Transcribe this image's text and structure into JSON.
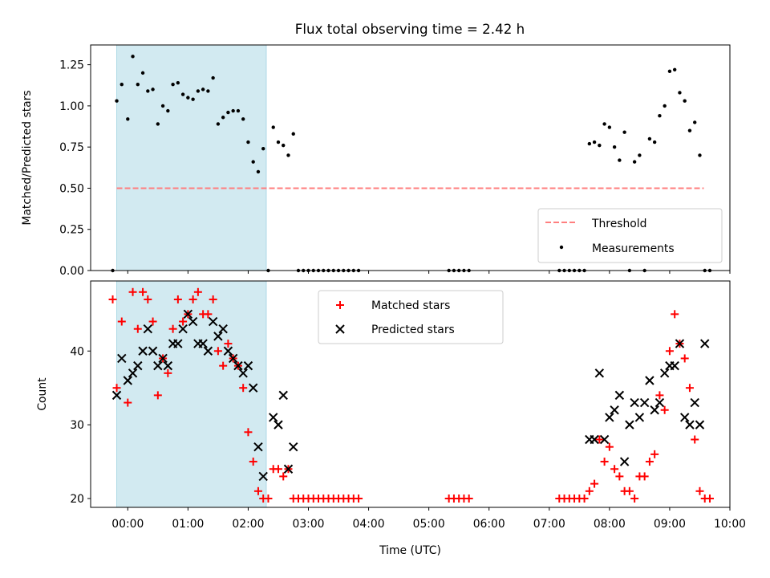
{
  "chart_data": [
    {
      "type": "scatter",
      "panel": "top",
      "title": "Flux total observing time = 2.42 h",
      "xlabel": "",
      "ylabel": "Matched/Predicted stars",
      "xlim": [
        "23:23",
        "10:00"
      ],
      "ylim": [
        0,
        1.37
      ],
      "y_ticks": [
        "0.00",
        "0.25",
        "0.50",
        "0.75",
        "1.00",
        "1.25"
      ],
      "x_ticks": [
        "00:00",
        "01:00",
        "02:00",
        "03:00",
        "04:00",
        "05:00",
        "06:00",
        "07:00",
        "08:00",
        "09:00",
        "10:00"
      ],
      "x_tick_labels_shown": false,
      "shaded_interval": {
        "start": "23:49",
        "end": "02:18",
        "color": "#add8e6"
      },
      "legend_position": "lower right",
      "series": [
        {
          "name": "Threshold",
          "kind": "dashed-line",
          "color": "#ff7f7f",
          "x": [
            "23:49",
            "09:34"
          ],
          "y": [
            0.5,
            0.5
          ]
        },
        {
          "name": "Measurements",
          "kind": "dots",
          "color": "#000000",
          "x": [
            "23:45",
            "23:49",
            "23:54",
            "00:00",
            "00:05",
            "00:10",
            "00:15",
            "00:20",
            "00:25",
            "00:30",
            "00:35",
            "00:40",
            "00:45",
            "00:50",
            "00:55",
            "01:00",
            "01:05",
            "01:10",
            "01:15",
            "01:20",
            "01:25",
            "01:30",
            "01:35",
            "01:40",
            "01:45",
            "01:50",
            "01:55",
            "02:00",
            "02:05",
            "02:10",
            "02:15",
            "02:20",
            "02:25",
            "02:30",
            "02:35",
            "02:40",
            "02:45",
            "02:50",
            "02:55",
            "03:00",
            "03:05",
            "03:10",
            "03:15",
            "03:20",
            "03:25",
            "03:30",
            "03:35",
            "03:40",
            "03:45",
            "03:50",
            "05:20",
            "05:25",
            "05:30",
            "05:35",
            "05:40",
            "07:10",
            "07:15",
            "07:20",
            "07:25",
            "07:30",
            "07:35",
            "07:40",
            "07:45",
            "07:50",
            "07:55",
            "08:00",
            "08:05",
            "08:10",
            "08:15",
            "08:20",
            "08:25",
            "08:30",
            "08:35",
            "08:40",
            "08:45",
            "08:50",
            "08:55",
            "09:00",
            "09:05",
            "09:10",
            "09:15",
            "09:20",
            "09:25",
            "09:30",
            "09:35",
            "09:40"
          ],
          "y": [
            0.0,
            1.03,
            1.13,
            0.92,
            1.3,
            1.13,
            1.2,
            1.09,
            1.1,
            0.89,
            1.0,
            0.97,
            1.13,
            1.14,
            1.07,
            1.05,
            1.04,
            1.09,
            1.1,
            1.09,
            1.17,
            0.89,
            0.93,
            0.96,
            0.97,
            0.97,
            0.92,
            0.78,
            0.66,
            0.6,
            0.74,
            0.0,
            0.87,
            0.78,
            0.76,
            0.7,
            0.83,
            0.0,
            0.0,
            0.0,
            0.0,
            0.0,
            0.0,
            0.0,
            0.0,
            0.0,
            0.0,
            0.0,
            0.0,
            0.0,
            0.0,
            0.0,
            0.0,
            0.0,
            0.0,
            0.0,
            0.0,
            0.0,
            0.0,
            0.0,
            0.0,
            0.77,
            0.78,
            0.76,
            0.89,
            0.87,
            0.75,
            0.67,
            0.84,
            0.0,
            0.66,
            0.7,
            0.0,
            0.8,
            0.78,
            0.94,
            1.0,
            1.21,
            1.22,
            1.08,
            1.03,
            0.85,
            0.9,
            0.7,
            0.0,
            0.0
          ]
        }
      ]
    },
    {
      "type": "scatter",
      "panel": "bottom",
      "title": "",
      "xlabel": "Time (UTC)",
      "ylabel": "Count",
      "xlim": [
        "23:23",
        "10:00"
      ],
      "ylim": [
        18.8,
        49.5
      ],
      "y_ticks": [
        "20",
        "30",
        "40"
      ],
      "x_ticks": [
        "00:00",
        "01:00",
        "02:00",
        "03:00",
        "04:00",
        "05:00",
        "06:00",
        "07:00",
        "08:00",
        "09:00",
        "10:00"
      ],
      "shaded_interval": {
        "start": "23:49",
        "end": "02:18",
        "color": "#add8e6"
      },
      "legend_position": "upper center",
      "series": [
        {
          "name": "Matched stars",
          "marker": "+",
          "color": "#ff0000",
          "x": [
            "23:45",
            "23:49",
            "23:54",
            "00:00",
            "00:05",
            "00:10",
            "00:15",
            "00:20",
            "00:25",
            "00:30",
            "00:35",
            "00:40",
            "00:45",
            "00:50",
            "00:55",
            "01:00",
            "01:05",
            "01:10",
            "01:15",
            "01:20",
            "01:25",
            "01:30",
            "01:35",
            "01:40",
            "01:45",
            "01:50",
            "01:55",
            "02:00",
            "02:05",
            "02:10",
            "02:15",
            "02:20",
            "02:25",
            "02:30",
            "02:35",
            "02:40",
            "02:45",
            "02:50",
            "02:55",
            "03:00",
            "03:05",
            "03:10",
            "03:15",
            "03:20",
            "03:25",
            "03:30",
            "03:35",
            "03:40",
            "03:45",
            "03:50",
            "05:20",
            "05:25",
            "05:30",
            "05:35",
            "05:40",
            "07:10",
            "07:15",
            "07:20",
            "07:25",
            "07:30",
            "07:35",
            "07:40",
            "07:45",
            "07:50",
            "07:55",
            "08:00",
            "08:05",
            "08:10",
            "08:15",
            "08:20",
            "08:25",
            "08:30",
            "08:35",
            "08:40",
            "08:45",
            "08:50",
            "08:55",
            "09:00",
            "09:05",
            "09:10",
            "09:15",
            "09:20",
            "09:25",
            "09:30",
            "09:35",
            "09:40"
          ],
          "y": [
            47,
            35,
            44,
            33,
            48,
            43,
            48,
            47,
            44,
            34,
            39,
            37,
            43,
            47,
            44,
            45,
            47,
            48,
            45,
            45,
            47,
            40,
            38,
            41,
            39,
            38,
            35,
            29,
            25,
            21,
            20,
            20,
            24,
            24,
            23,
            24,
            20,
            20,
            20,
            20,
            20,
            20,
            20,
            20,
            20,
            20,
            20,
            20,
            20,
            20,
            20,
            20,
            20,
            20,
            20,
            20,
            20,
            20,
            20,
            20,
            20,
            21,
            22,
            28,
            25,
            27,
            24,
            23,
            21,
            21,
            20,
            23,
            23,
            25,
            26,
            34,
            32,
            40,
            45,
            41,
            39,
            35,
            28,
            21,
            20,
            20
          ]
        },
        {
          "name": "Predicted stars",
          "marker": "x",
          "color": "#000000",
          "x": [
            "23:49",
            "23:54",
            "00:00",
            "00:05",
            "00:10",
            "00:15",
            "00:20",
            "00:25",
            "00:30",
            "00:35",
            "00:40",
            "00:45",
            "00:50",
            "00:55",
            "01:00",
            "01:05",
            "01:10",
            "01:15",
            "01:20",
            "01:25",
            "01:30",
            "01:35",
            "01:40",
            "01:45",
            "01:50",
            "01:55",
            "02:00",
            "02:05",
            "02:10",
            "02:15",
            "02:25",
            "02:30",
            "02:35",
            "02:40",
            "02:45",
            "07:40",
            "07:45",
            "07:50",
            "07:55",
            "08:00",
            "08:05",
            "08:10",
            "08:15",
            "08:20",
            "08:25",
            "08:30",
            "08:35",
            "08:40",
            "08:45",
            "08:50",
            "08:55",
            "09:00",
            "09:05",
            "09:10",
            "09:15",
            "09:20",
            "09:25",
            "09:30",
            "09:35"
          ],
          "y": [
            34,
            39,
            36,
            37,
            38,
            40,
            43,
            40,
            38,
            39,
            38,
            41,
            41,
            43,
            45,
            44,
            41,
            41,
            40,
            44,
            42,
            43,
            40,
            39,
            38,
            37,
            38,
            35,
            27,
            23,
            31,
            30,
            34,
            24,
            27,
            28,
            28,
            37,
            28,
            31,
            32,
            34,
            25,
            30,
            33,
            31,
            33,
            36,
            32,
            33,
            37,
            38,
            38,
            41,
            31,
            30,
            33,
            30,
            41
          ]
        }
      ]
    }
  ]
}
